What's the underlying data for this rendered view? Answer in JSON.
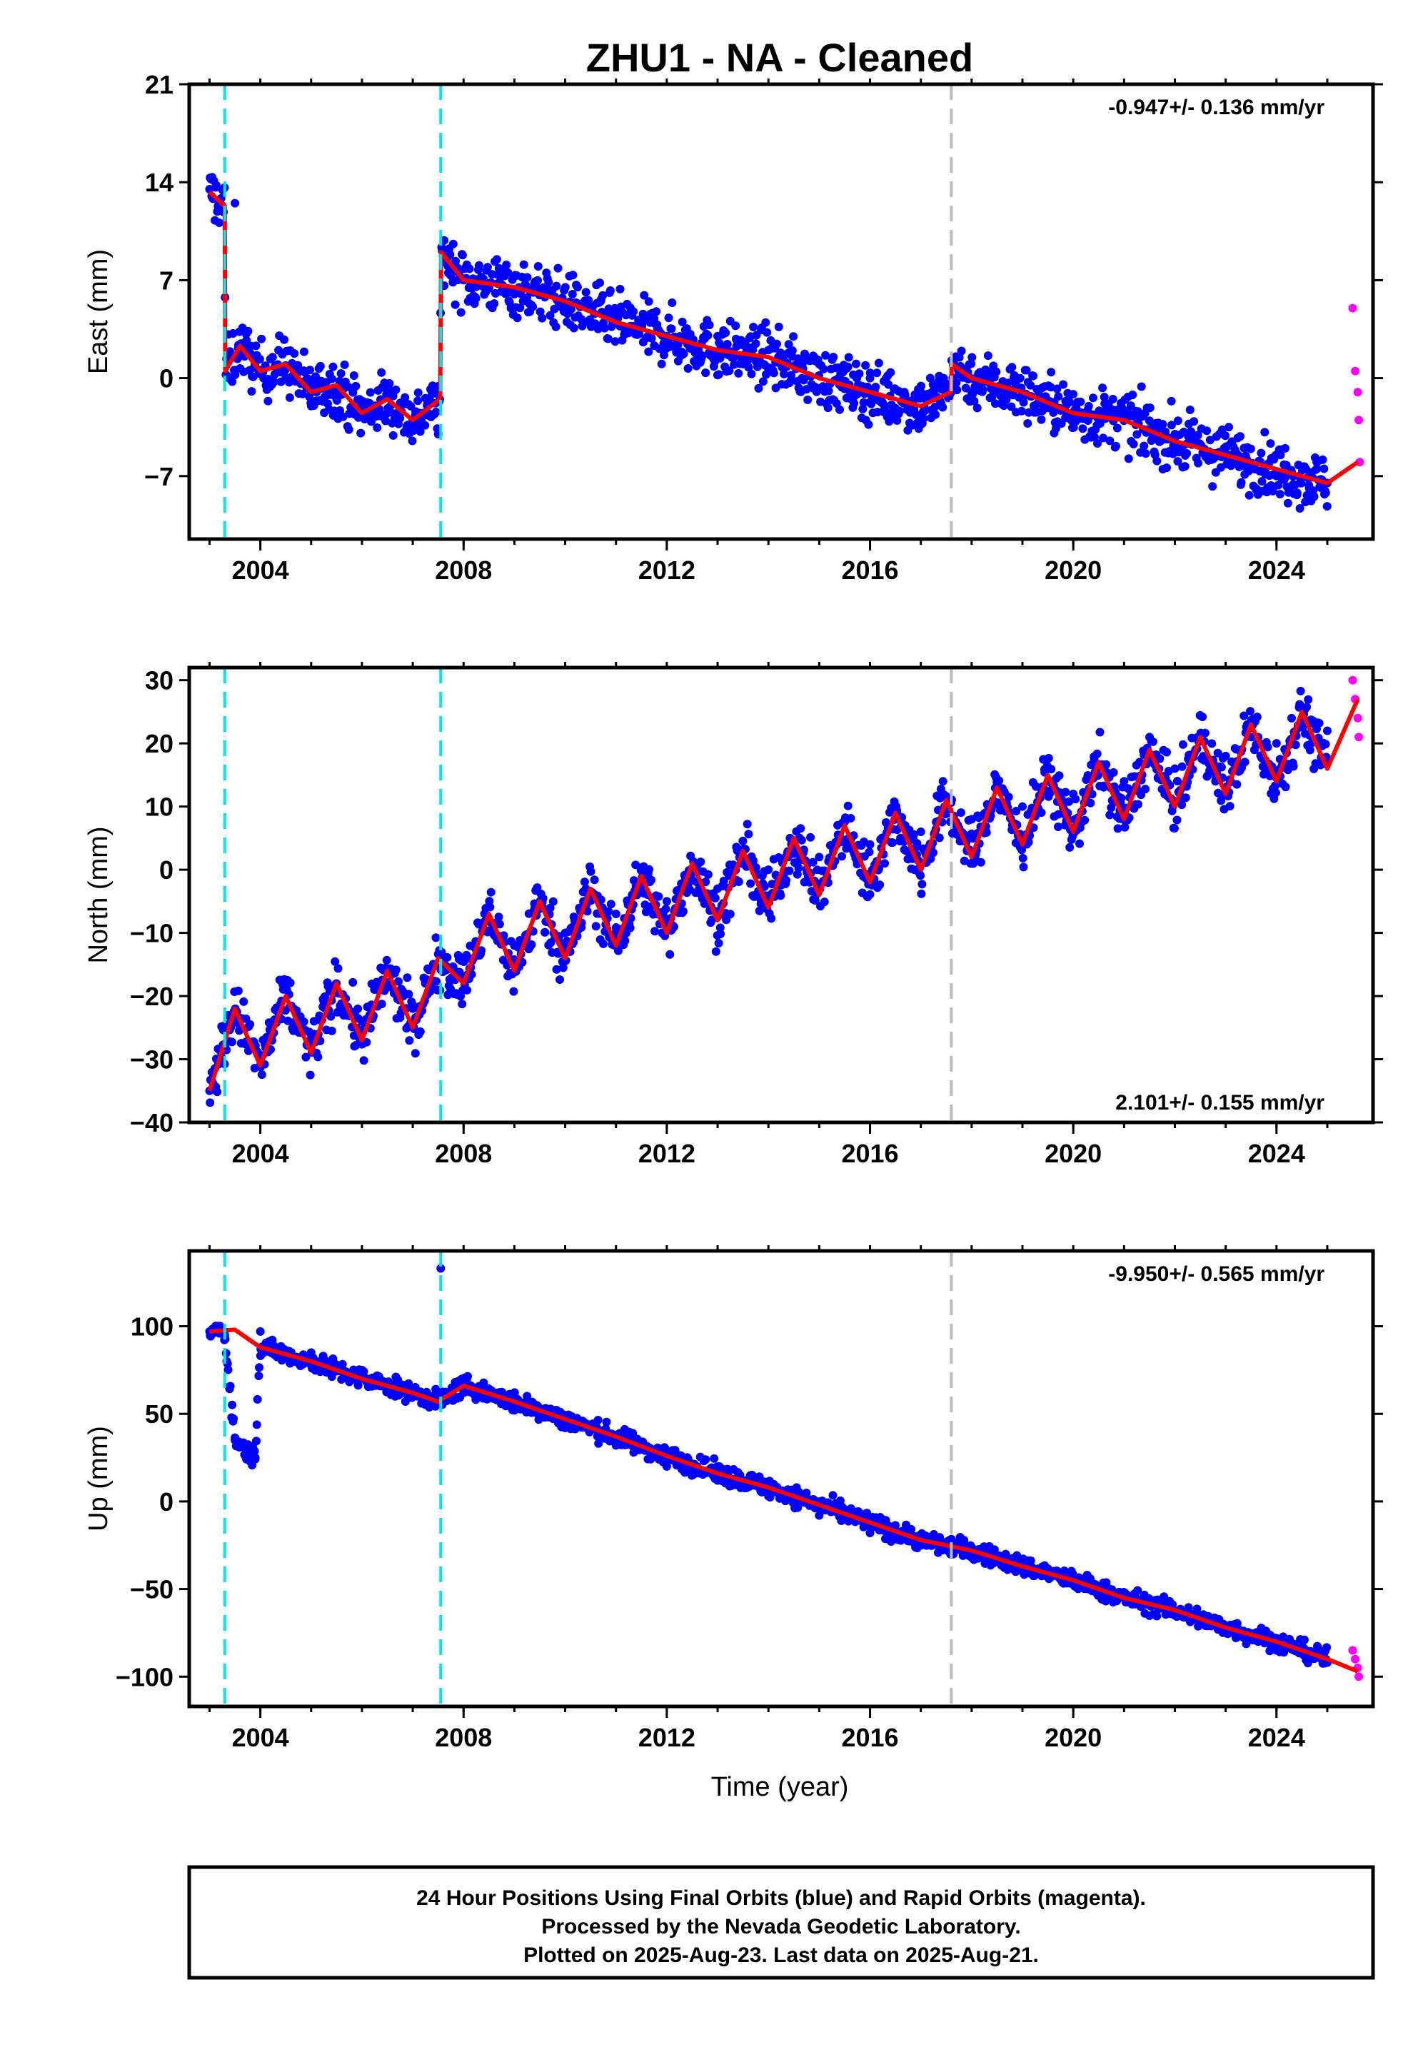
{
  "title": "ZHU1  - NA - Cleaned",
  "xlabel": "Time (year)",
  "footer": [
    "24 Hour Positions Using Final Orbits (blue) and Rapid Orbits (magenta).",
    "Processed by the Nevada Geodetic Laboratory.",
    "Plotted on 2025-Aug-23. Last data on 2025-Aug-21."
  ],
  "colors": {
    "final_orbits": "#0000ff",
    "rapid_orbits": "#ff00ff",
    "model": "#ff0000",
    "equipment_change": "#00e5ee",
    "earthquake": "#bbbbbb"
  },
  "chart_data": [
    {
      "type": "scatter",
      "id": "east",
      "ylabel": "East (mm)",
      "rate_label": "-0.947+/- 0.136 mm/yr",
      "rate_position": "top-right",
      "xlim": [
        2002.6,
        2025.9
      ],
      "ylim": [
        -11.5,
        21
      ],
      "xticks": [
        2004,
        2008,
        2012,
        2016,
        2020,
        2024
      ],
      "yticks": [
        21,
        14,
        7,
        0,
        -7
      ],
      "ytick_labels": [
        "21",
        "14",
        "7",
        "0",
        "−7"
      ],
      "offsets": [
        2003.3,
        2007.55
      ],
      "gray_lines": [
        2017.6
      ],
      "series": [
        {
          "name": "Final Orbits (blue)",
          "x": [
            2003.0,
            2003.5,
            2004.0,
            2004.5,
            2005.0,
            2005.5,
            2006.0,
            2006.5,
            2007.0,
            2007.5,
            2008.0,
            2009.0,
            2010.0,
            2011.0,
            2012.0,
            2013.0,
            2014.0,
            2015.0,
            2016.0,
            2017.0,
            2018.0,
            2019.0,
            2020.0,
            2021.0,
            2022.0,
            2023.0,
            2024.0,
            2025.0
          ],
          "y": [
            13.5,
            12.5,
            0.5,
            0.0,
            -1.0,
            -1.5,
            -2.0,
            -2.5,
            -3.0,
            -4.0,
            7.0,
            6.0,
            5.0,
            4.0,
            3.0,
            3.0,
            2.0,
            1.0,
            0.0,
            -1.0,
            -1.0,
            -1.5,
            -2.5,
            -3.0,
            -4.0,
            -5.0,
            -7.0,
            -7.5
          ]
        },
        {
          "name": "Rapid Orbits (magenta)",
          "x": [
            2025.5,
            2025.55,
            2025.6,
            2025.62,
            2025.64
          ],
          "y": [
            5.0,
            0.5,
            -1.0,
            -3.0,
            -6.0
          ]
        },
        {
          "name": "Model",
          "x": [
            2003.0,
            2003.3,
            2003.31,
            2003.6,
            2004.0,
            2004.5,
            2005.0,
            2005.5,
            2006.0,
            2006.5,
            2007.0,
            2007.54,
            2007.56,
            2008.0,
            2009.0,
            2010.0,
            2011.0,
            2012.0,
            2013.0,
            2014.0,
            2015.0,
            2016.0,
            2017.0,
            2017.59,
            2017.61,
            2018.0,
            2019.0,
            2020.0,
            2021.0,
            2022.0,
            2023.0,
            2024.0,
            2025.0,
            2025.6
          ],
          "y": [
            13.3,
            12.3,
            0.5,
            2.3,
            0.5,
            1.0,
            -1.0,
            -0.5,
            -2.5,
            -1.5,
            -3.0,
            -1.5,
            9.0,
            7.0,
            6.5,
            5.5,
            4.0,
            3.0,
            2.0,
            1.5,
            0.0,
            -1.0,
            -2.0,
            -1.0,
            1.0,
            0.0,
            -1.0,
            -2.5,
            -3.0,
            -4.5,
            -5.5,
            -6.5,
            -7.5,
            -6.0
          ]
        }
      ]
    },
    {
      "type": "scatter",
      "id": "north",
      "ylabel": "North (mm)",
      "rate_label": "2.101+/- 0.155 mm/yr",
      "rate_position": "bottom-right",
      "xlim": [
        2002.6,
        2025.9
      ],
      "ylim": [
        -40,
        32
      ],
      "xticks": [
        2004,
        2008,
        2012,
        2016,
        2020,
        2024
      ],
      "yticks": [
        30,
        20,
        10,
        0,
        -10,
        -20,
        -30,
        -40
      ],
      "ytick_labels": [
        "30",
        "20",
        "10",
        "0",
        "−10",
        "−20",
        "−30",
        "−40"
      ],
      "offsets": [
        2003.3,
        2007.55
      ],
      "gray_lines": [
        2017.6
      ],
      "series": [
        {
          "name": "Final Orbits (blue)",
          "x": [
            2003.0,
            2003.5,
            2004.0,
            2005.0,
            2006.0,
            2007.0,
            2008.0,
            2009.0,
            2010.0,
            2011.0,
            2012.0,
            2013.0,
            2014.0,
            2015.0,
            2016.0,
            2017.0,
            2018.0,
            2019.0,
            2020.0,
            2021.0,
            2022.0,
            2023.0,
            2024.0,
            2025.0
          ],
          "y": [
            -35.0,
            -24.0,
            -31.0,
            -27.0,
            -24.0,
            -22.0,
            -17.0,
            -12.0,
            -10.0,
            -7.0,
            -5.0,
            -3.0,
            0.0,
            2.0,
            4.0,
            6.0,
            8.0,
            10.0,
            12.0,
            14.0,
            16.0,
            18.0,
            20.0,
            22.0
          ]
        },
        {
          "name": "Rapid Orbits (magenta)",
          "x": [
            2025.5,
            2025.55,
            2025.6,
            2025.62
          ],
          "y": [
            30.0,
            27.0,
            24.0,
            21.0
          ]
        },
        {
          "name": "Model",
          "x": [
            2003.0,
            2003.5,
            2004.0,
            2004.5,
            2005.0,
            2005.5,
            2006.0,
            2006.5,
            2007.0,
            2007.5,
            2008.0,
            2008.5,
            2009.0,
            2009.5,
            2010.0,
            2010.5,
            2011.0,
            2011.5,
            2012.0,
            2012.5,
            2013.0,
            2013.5,
            2014.0,
            2014.5,
            2015.0,
            2015.5,
            2016.0,
            2016.5,
            2017.0,
            2017.5,
            2018.0,
            2018.5,
            2019.0,
            2019.5,
            2020.0,
            2020.5,
            2021.0,
            2021.5,
            2022.0,
            2022.5,
            2023.0,
            2023.5,
            2024.0,
            2024.5,
            2025.0,
            2025.6
          ],
          "y": [
            -35.0,
            -22.0,
            -31.0,
            -20.0,
            -29.0,
            -18.0,
            -27.0,
            -16.0,
            -25.0,
            -14.0,
            -18.0,
            -7.0,
            -16.0,
            -5.0,
            -14.0,
            -3.0,
            -12.0,
            -1.0,
            -10.0,
            1.0,
            -8.0,
            3.0,
            -6.0,
            5.0,
            -4.0,
            7.0,
            -2.0,
            9.0,
            0.0,
            11.0,
            2.0,
            13.0,
            4.0,
            15.0,
            6.0,
            17.0,
            8.0,
            19.0,
            10.0,
            21.0,
            12.0,
            23.0,
            14.0,
            25.0,
            16.0,
            27.0
          ]
        }
      ]
    },
    {
      "type": "scatter",
      "id": "up",
      "ylabel": "Up (mm)",
      "rate_label": "-9.950+/- 0.565 mm/yr",
      "rate_position": "top-right",
      "xlim": [
        2002.6,
        2025.9
      ],
      "ylim": [
        -117,
        143
      ],
      "xticks": [
        2004,
        2008,
        2012,
        2016,
        2020,
        2024
      ],
      "yticks": [
        100,
        50,
        0,
        -50,
        -100
      ],
      "ytick_labels": [
        "100",
        "50",
        "0",
        "−50",
        "−100"
      ],
      "offsets": [
        2003.3,
        2007.55
      ],
      "gray_lines": [
        2017.6
      ],
      "series": [
        {
          "name": "Final Orbits (blue)",
          "x": [
            2003.0,
            2003.3,
            2003.5,
            2003.9,
            2004.0,
            2005.0,
            2006.0,
            2007.0,
            2007.55,
            2008.0,
            2009.0,
            2010.0,
            2011.0,
            2012.0,
            2013.0,
            2014.0,
            2015.0,
            2016.0,
            2017.0,
            2018.0,
            2019.0,
            2020.0,
            2021.0,
            2022.0,
            2023.0,
            2024.0,
            2025.0
          ],
          "y": [
            97.0,
            95.0,
            35.0,
            25.0,
            97.0,
            85.0,
            75.0,
            63.0,
            133.0,
            62.0,
            52.0,
            42.0,
            32.0,
            20.0,
            12.0,
            3.0,
            -8.0,
            -18.0,
            -25.0,
            -32.0,
            -40.0,
            -47.0,
            -55.0,
            -65.0,
            -75.0,
            -85.0,
            -92.0
          ]
        },
        {
          "name": "Rapid Orbits (magenta)",
          "x": [
            2025.5,
            2025.55,
            2025.6,
            2025.62
          ],
          "y": [
            -85.0,
            -90.0,
            -95.0,
            -100.0
          ]
        },
        {
          "name": "Model",
          "x": [
            2003.0,
            2003.5,
            2004.0,
            2005.0,
            2006.0,
            2007.0,
            2007.5,
            2008.0,
            2009.0,
            2010.0,
            2011.0,
            2012.0,
            2013.0,
            2014.0,
            2015.0,
            2016.0,
            2017.0,
            2018.0,
            2019.0,
            2020.0,
            2021.0,
            2022.0,
            2023.0,
            2024.0,
            2025.0,
            2025.6
          ],
          "y": [
            97.0,
            98.0,
            88.0,
            80.0,
            70.0,
            62.0,
            57.0,
            66.0,
            57.0,
            47.0,
            37.0,
            26.0,
            16.0,
            8.0,
            -2.0,
            -12.0,
            -22.0,
            -28.0,
            -37.0,
            -45.0,
            -55.0,
            -62.0,
            -72.0,
            -80.0,
            -90.0,
            -97.0
          ]
        }
      ]
    }
  ]
}
